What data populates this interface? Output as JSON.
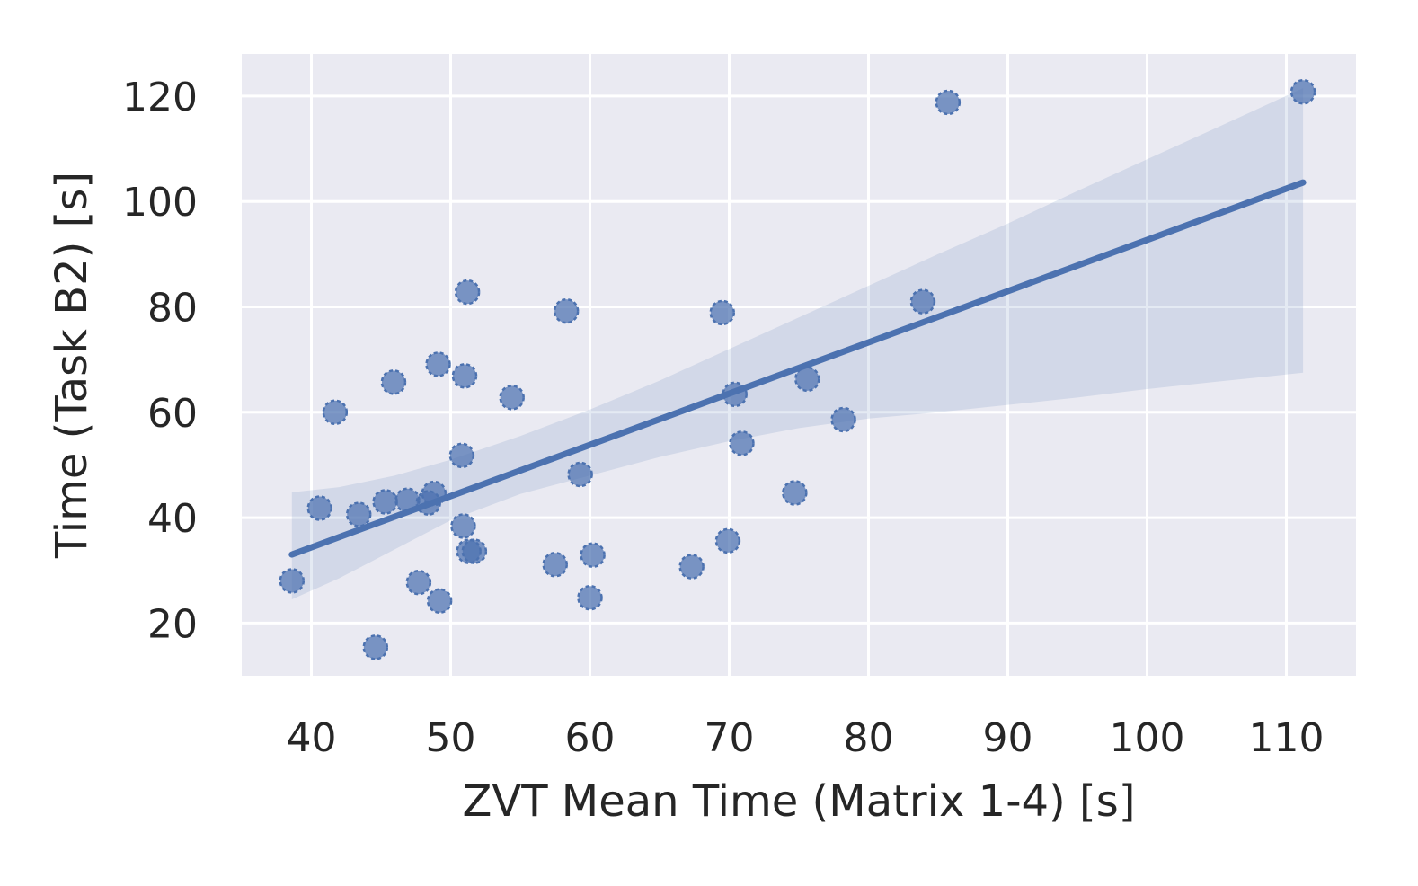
{
  "chart_data": {
    "type": "scatter",
    "title": "",
    "xlabel": "ZVT Mean Time (Matrix 1-4) [s]",
    "ylabel": "Time (Task B2) [s]",
    "xlim": [
      35,
      115
    ],
    "ylim": [
      10,
      128
    ],
    "xticks": [
      40,
      50,
      60,
      70,
      80,
      90,
      100,
      110
    ],
    "yticks": [
      20,
      40,
      60,
      80,
      100,
      120
    ],
    "grid": true,
    "background": "#eaeaf2",
    "grid_color": "#ffffff",
    "point_color": "#4c72b0",
    "line_color": "#4c72b0",
    "points": [
      {
        "x": 38.6,
        "y": 28.0
      },
      {
        "x": 40.6,
        "y": 41.8
      },
      {
        "x": 41.7,
        "y": 60.0
      },
      {
        "x": 43.4,
        "y": 40.6
      },
      {
        "x": 44.6,
        "y": 15.4
      },
      {
        "x": 45.3,
        "y": 43.0
      },
      {
        "x": 45.9,
        "y": 65.7
      },
      {
        "x": 46.9,
        "y": 43.3
      },
      {
        "x": 47.7,
        "y": 27.7
      },
      {
        "x": 48.4,
        "y": 42.8
      },
      {
        "x": 48.8,
        "y": 44.6
      },
      {
        "x": 49.1,
        "y": 69.1
      },
      {
        "x": 49.2,
        "y": 24.2
      },
      {
        "x": 50.8,
        "y": 51.8
      },
      {
        "x": 50.9,
        "y": 38.4
      },
      {
        "x": 51.0,
        "y": 66.9
      },
      {
        "x": 51.2,
        "y": 82.8
      },
      {
        "x": 51.3,
        "y": 33.6
      },
      {
        "x": 51.7,
        "y": 33.6
      },
      {
        "x": 54.4,
        "y": 62.8
      },
      {
        "x": 57.5,
        "y": 31.1
      },
      {
        "x": 58.3,
        "y": 79.2
      },
      {
        "x": 59.3,
        "y": 48.2
      },
      {
        "x": 60.0,
        "y": 24.8
      },
      {
        "x": 60.2,
        "y": 32.9
      },
      {
        "x": 67.3,
        "y": 30.7
      },
      {
        "x": 69.5,
        "y": 78.9
      },
      {
        "x": 69.9,
        "y": 35.6
      },
      {
        "x": 70.4,
        "y": 63.4
      },
      {
        "x": 70.9,
        "y": 54.1
      },
      {
        "x": 74.7,
        "y": 44.7
      },
      {
        "x": 75.6,
        "y": 66.3
      },
      {
        "x": 78.2,
        "y": 58.6
      },
      {
        "x": 83.9,
        "y": 81.0
      },
      {
        "x": 85.7,
        "y": 118.8
      },
      {
        "x": 111.2,
        "y": 120.8
      }
    ],
    "regression_line": {
      "x": [
        38.6,
        111.2
      ],
      "y": [
        33.0,
        103.6
      ]
    },
    "confidence_band": {
      "x": [
        38.6,
        42,
        46,
        50,
        55,
        60,
        65,
        70,
        75,
        80,
        85,
        90,
        95,
        100,
        105,
        111.2
      ],
      "upper": [
        44.8,
        45.8,
        48.0,
        51.0,
        55.5,
        60.5,
        66.0,
        72.0,
        78.0,
        84.0,
        90.0,
        95.8,
        102.0,
        108.0,
        114.0,
        121.5
      ],
      "lower": [
        24.5,
        28.5,
        34.0,
        39.5,
        44.5,
        48.0,
        51.5,
        54.5,
        57.0,
        58.8,
        60.0,
        61.4,
        62.8,
        64.4,
        65.8,
        67.5
      ]
    }
  }
}
